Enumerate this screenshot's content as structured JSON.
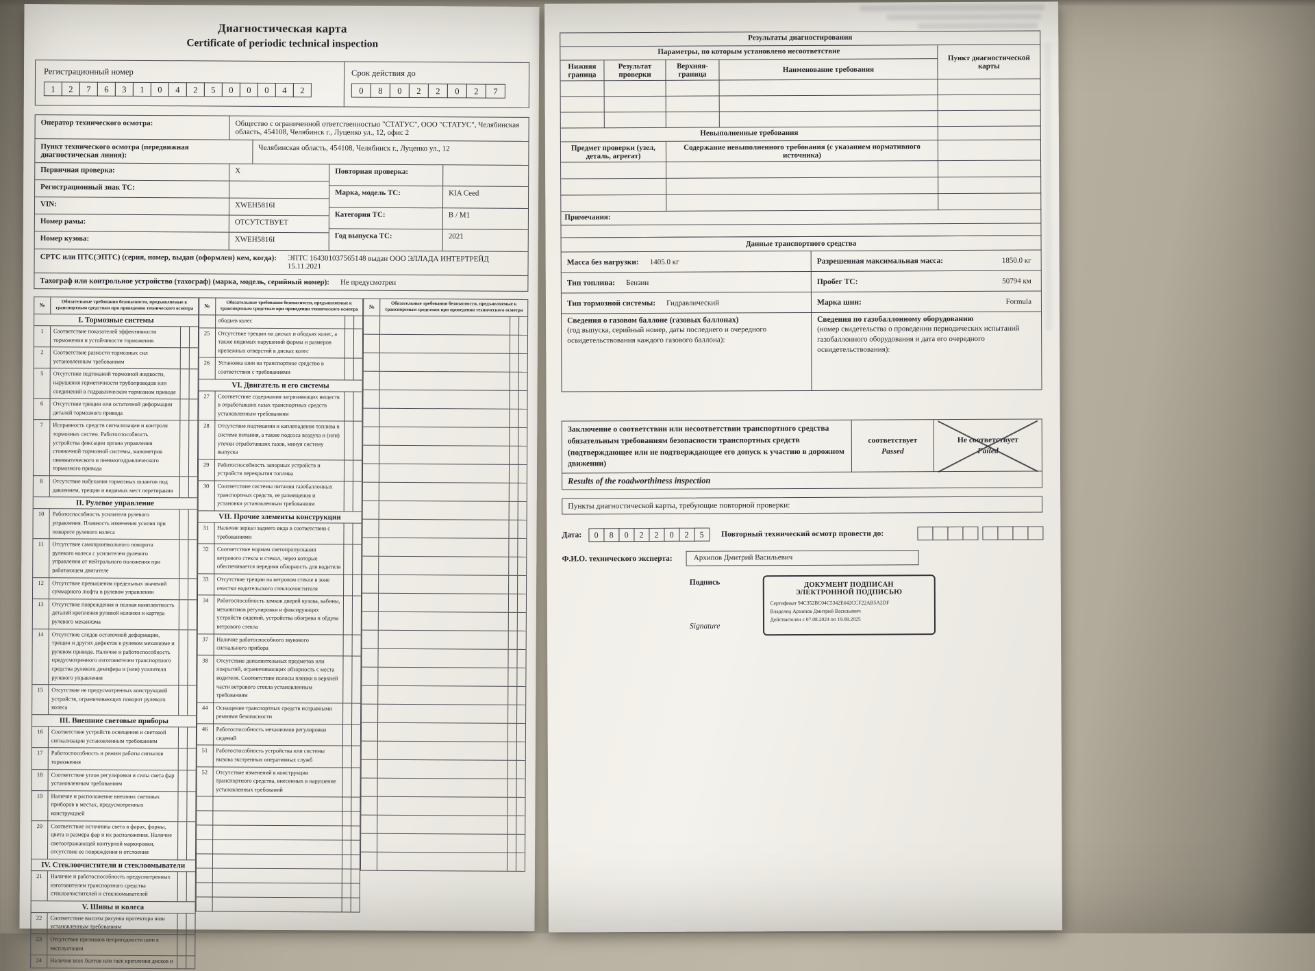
{
  "page1": {
    "title_ru": "Диагностическая карта",
    "title_en": "Certificate of periodic technical inspection",
    "reg_number_label": "Регистрационный номер",
    "reg_number_digits": [
      "1",
      "2",
      "7",
      "6",
      "3",
      "1",
      "0",
      "4",
      "2",
      "5",
      "0",
      "0",
      "0",
      "4",
      "2"
    ],
    "valid_until_label": "Срок действия до",
    "valid_until_digits": [
      "0",
      "8",
      "0",
      "2",
      "2",
      "0",
      "2",
      "7"
    ],
    "operator_label": "Оператор технического осмотра:",
    "operator_value": "Общество с ограниченной ответственностью \"СТАТУС\", ООО \"СТАТУС\", Челябинская область, 454108, Челябинск г., Луценко ул., 12, офис 2",
    "point_label": "Пункт технического осмотра (передвижная диагностическая линия):",
    "point_value": "Челябинская область, 454108, Челябинск г., Луценко ул., 12",
    "left_rows": [
      {
        "label": "Первичная проверка:",
        "value": "X"
      },
      {
        "label": "Регистрационный знак ТС:",
        "value": ""
      },
      {
        "label": "VIN:",
        "value": "XWEH5816I"
      },
      {
        "label": "Номер рамы:",
        "value": "ОТСУТСТВУЕТ"
      },
      {
        "label": "Номер кузова:",
        "value": "XWEH5816I"
      }
    ],
    "right_rows": [
      {
        "label": "Повторная проверка:",
        "value": ""
      },
      {
        "label": "Марка, модель ТС:",
        "value": "KIA Ceed"
      },
      {
        "label": "Категория ТС:",
        "value": "B / M1"
      },
      {
        "label": "Год выпуска ТС:",
        "value": "2021"
      }
    ],
    "srts_label": "СРТС или ПТС(ЭПТС)  (серия, номер, выдан (оформлен) кем, когда):",
    "srts_value": "ЭПТС 164301037565148 выдан ООО ЭЛЛАДА ИНТЕРТРЕЙД 15.11.2021",
    "tacho_label": "Тахограф или контрольное устройство (тахограф) (марка, модель, серийный номер):",
    "tacho_value": "Не предусмотрен",
    "checklist": {
      "header_no": "№",
      "header_req": "Обязательные требования безопасности, предъявляемые к транспортным средствам при проведении технического осмотра",
      "col1": [
        {
          "s": "I. Тормозные системы"
        },
        {
          "n": "1",
          "t": "Соответствие показателей эффективности торможения и устойчивости торможения"
        },
        {
          "n": "2",
          "t": "Соответствие разности тормозных сил установленным требованиям"
        },
        {
          "n": "5",
          "t": "Отсутствие подтеканий тормозной жидкости, нарушения герметичности трубопроводов или соединений в гидравлическом тормозном приводе"
        },
        {
          "n": "6",
          "t": "Отсутствие трещин или остаточной деформации деталей тормозного привода"
        },
        {
          "n": "7",
          "t": "Исправность средств сигнализации и контроля тормозных систем. Работоспособность устройства фиксации органа управления стояночной тормозной системы, манометров пневматического и пневмогидравлического тормозного привода"
        },
        {
          "n": "8",
          "t": "Отсутствие набухания тормозных шлангов под давлением, трещин и видимых мест перетирания"
        },
        {
          "s": "II. Рулевое управление"
        },
        {
          "n": "10",
          "t": "Работоспособность усилителя рулевого управления. Плавность изменения усилия при повороте рулевого колеса"
        },
        {
          "n": "11",
          "t": "Отсутствие самопроизвольного поворота рулевого колеса с усилителем рулевого управления от нейтрального положения при работающем двигателе"
        },
        {
          "n": "12",
          "t": "Отсутствие превышения предельных значений суммарного люфта в рулевом управлении"
        },
        {
          "n": "13",
          "t": "Отсутствие повреждения и полная комплектность деталей крепления рулевой колонки и картера рулевого механизма"
        },
        {
          "n": "14",
          "t": "Отсутствие следов остаточной деформации, трещин и других дефектов в рулевом механизме и рулевом приводе. Наличие и работоспособность предусмотренного изготовителем транспортного средства рулевого демпфера и (или) усилителя рулевого управления"
        },
        {
          "n": "15",
          "t": "Отсутствие не предусмотренных конструкцией устройств, ограничивающих поворот рулевого колеса"
        },
        {
          "s": "III. Внешние световые приборы"
        },
        {
          "n": "16",
          "t": "Соответствие устройств освещения и световой сигнализации установленным требованиям"
        },
        {
          "n": "17",
          "t": "Работоспособность и режим работы сигналов торможения"
        },
        {
          "n": "18",
          "t": "Соответствие углов регулировки и силы света фар установленным требованиям"
        },
        {
          "n": "19",
          "t": "Наличие и расположение внешних световых приборов в местах, предусмотренных конструкцией"
        },
        {
          "n": "20",
          "t": "Соответствие источника света в фарах, формы, цвета и размера фар и их расположения. Наличие светоотражающей контурной маркировки, отсутствие ее повреждения и отслоения"
        },
        {
          "s": "IV. Стеклоочистители и стеклоомыватели"
        },
        {
          "n": "21",
          "t": "Наличие и работоспособность предусмотренных изготовителем транспортного средства стеклоочистителей и стеклоомывателей"
        },
        {
          "s": "V. Шины и колеса"
        },
        {
          "n": "22",
          "t": "Соответствие высоты рисунка протектора шин установленным требованиям"
        },
        {
          "n": "23",
          "t": "Отсутствие признаков непригодности шин к эксплуатации"
        },
        {
          "n": "24",
          "t": "Наличие всех болтов или гаек крепления дисков и"
        }
      ],
      "col2": [
        {
          "n": "",
          "t": "ободьев колес"
        },
        {
          "n": "25",
          "t": "Отсутствие трещин на дисках и ободьях колес, а также видимых нарушений формы и размеров крепежных отверстий в дисках колес"
        },
        {
          "n": "26",
          "t": "Установка шин на транспортное средство в соответствии с требованиями"
        },
        {
          "s": "VI. Двигатель и его системы"
        },
        {
          "n": "27",
          "t": "Соответствие содержания загрязняющих веществ в отработавших газах транспортных средств установленным требованиям"
        },
        {
          "n": "28",
          "t": "Отсутствие подтекания и каплепадения топлива в системе  питания, а также подсоса воздуха и (или) утечки отработавших газов, минуя систему выпуска"
        },
        {
          "n": "29",
          "t": "Работоспособность запорных устройств и устройств перекрытия топлива"
        },
        {
          "n": "30",
          "t": "Соответствие системы питания газобаллонных транспортных средств, ее размещения и установки установленным требованиям"
        },
        {
          "s": "VII. Прочие элементы конструкции"
        },
        {
          "n": "31",
          "t": "Наличие зеркал заднего вида в соответствии с требованиями"
        },
        {
          "n": "32",
          "t": "Соответствие нормам светопропускания ветрового стекла и стекол, через которые обеспечивается передняя обзорность для водителя"
        },
        {
          "n": "33",
          "t": "Отсутствие трещин на ветровом стекле в зоне очистки водительского стеклоочистителя"
        },
        {
          "n": "34",
          "t": "Работоспособность замков дверей кузова, кабины, механизмов регулировки и фиксирующих устройств сидений, устройства обогрева и обдува ветрового стекла"
        },
        {
          "n": "37",
          "t": "Наличие работоспособного звукового сигнального прибора"
        },
        {
          "n": "38",
          "t": "Отсутствие дополнительных предметов или покрытий, ограничивающих обзорность с места водителя. Соответствие полосы пленки в верхней части ветрового стекла установленным требованиям"
        },
        {
          "n": "44",
          "t": "Оснащение транспортных средств исправными ремнями безопасности"
        },
        {
          "n": "46",
          "t": "Работоспособность механизмов регулировки сидений"
        },
        {
          "n": "51",
          "t": "Работоспособность устройства или системы вызова экстренных оперативных служб"
        },
        {
          "n": "52",
          "t": "Отсутствие изменений в конструкции транспортного средства, внесенных в нарушение установленных требований"
        },
        {
          "e": 20,
          "x": 8
        }
      ],
      "col3": [
        {
          "e": 26,
          "x": 30
        }
      ]
    }
  },
  "page2": {
    "results": {
      "title": "Результаты диагностирования",
      "params_header": "Параметры, по которым установлено несоответствие",
      "point_header": "Пункт диагностической карты",
      "col_headers": [
        "Нижняя граница",
        "Результат проверки",
        "Верхняя- граница",
        "Наименование требования"
      ],
      "unfulfilled_title": "Невыполненные требования",
      "unfulfilled_col1": "Предмет проверки (узел, деталь, агрегат)",
      "unfulfilled_col2": "Содержание невыполненного требования (с указанием нормативного источника)",
      "notes_label": "Примечания:"
    },
    "vehicle": {
      "title": "Данные транспортного средства",
      "rows": [
        {
          "l": "Масса без нагрузки:",
          "lv": "1405.0 кг",
          "r": "Разрешенная максимальная масса:",
          "rv": "1850.0 кг"
        },
        {
          "l": "Тип топлива:",
          "lv": "Бензин",
          "r": "Пробег ТС:",
          "rv": "50794 км"
        },
        {
          "l": "Тип тормозной системы:",
          "lv": "Гидравлический",
          "r": "Марка шин:",
          "rv": "Formula"
        }
      ],
      "gas_left_title": "Сведения о газовом баллоне (газовых баллонах)",
      "gas_left_note": "(год выпуска, серийный номер, даты последнего и очередного освидетельствования каждого газового баллона):",
      "gas_right_title": "Сведения по газобаллонному оборудованию",
      "gas_right_note": "(номер свидетельства о проведении периодических испытаний газобаллонного оборудования и дата его очередного освидетельствования):"
    },
    "conclusion": {
      "text": "Заключение о соответствии или несоответствии транспортного средства обязательным требованиям безопасности транспортных средств (подтверждающее или не подтверждающее его допуск к участию в дорожном движении)",
      "passed_ru": "соответствует",
      "passed_en": "Passed",
      "failed_ru": "Не соответствует",
      "failed_en": "Failed",
      "results_en": "Results of the roadworthiness inspection",
      "recheck_label": "Пункты диагностической карты, требующие повторной проверки:"
    },
    "footer": {
      "date_label": "Дата:",
      "date_digits": [
        "0",
        "8",
        "0",
        "2",
        "2",
        "0",
        "2",
        "5"
      ],
      "recheck_until_label": "Повторный технический осмотр провести до:",
      "recheck_cells_a": 4,
      "recheck_cells_b": 4,
      "expert_label": "Ф.И.О. технического эксперта:",
      "expert_name": "Архипов Дмитрий Васильевич",
      "sign_label": "Подпись",
      "signature_label": "Signature",
      "stamp": {
        "line1": "ДОКУМЕНТ ПОДПИСАН",
        "line2": "ЭЛЕКТРОННОЙ ПОДПИСЬЮ",
        "cert": "Сертификат 94C352BC04C5342E642CCF22AB5A2DF",
        "owner": "Владелец   Архипов Дмитрий Васильевич",
        "valid": "Действителен с 07.08.2024  по  19.08.2025"
      }
    }
  }
}
